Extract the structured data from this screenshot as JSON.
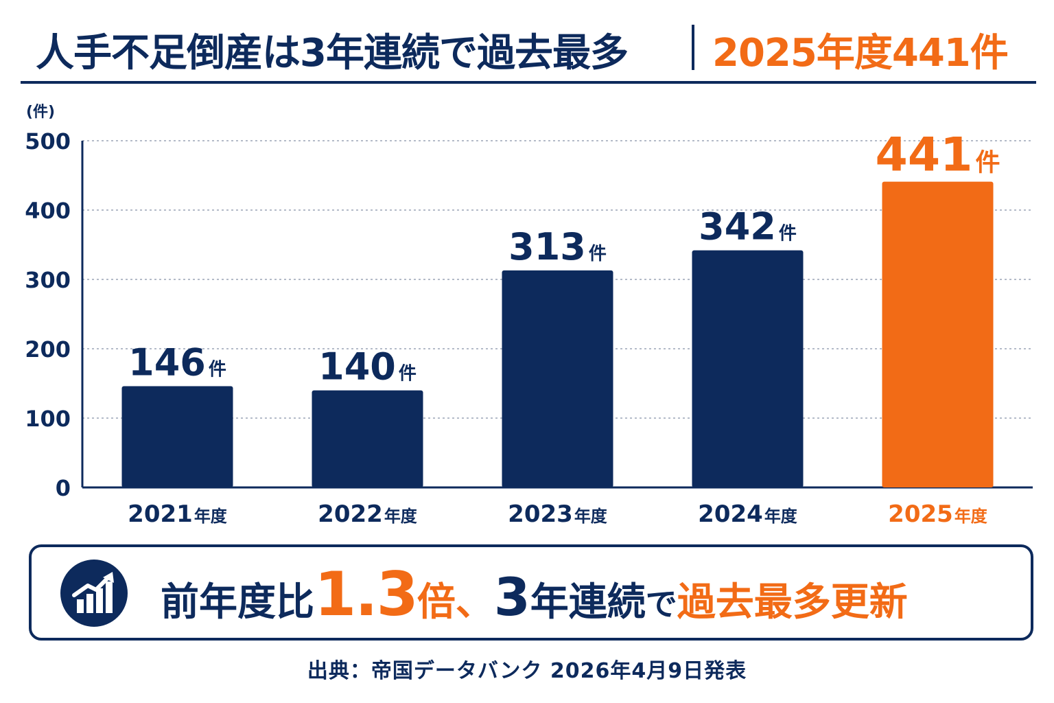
{
  "title": {
    "main": "人手不足倒産は3年連続で過去最多",
    "accent": "2025年度441件"
  },
  "colors": {
    "navy": "#0d2a5c",
    "orange": "#f26b16"
  },
  "chart_data": {
    "type": "bar",
    "categories": [
      "2021",
      "2022",
      "2023",
      "2024",
      "2025"
    ],
    "category_suffix": "年度",
    "values": [
      146,
      140,
      313,
      342,
      441
    ],
    "value_suffix": "件",
    "highlight_index": 4,
    "ylabel": "(件)",
    "ylim": [
      0,
      500
    ],
    "yticks": [
      0,
      100,
      200,
      300,
      400,
      500
    ],
    "grid": true
  },
  "summary": {
    "icon": "growth-chart-icon",
    "p1": "前年度比",
    "ratio": "1.3",
    "p2": "倍、",
    "years": "3",
    "p3": "年連続",
    "p4": "で",
    "p5": "過去最多更新"
  },
  "source": "出典：帝国データバンク 2026年4月9日発表"
}
